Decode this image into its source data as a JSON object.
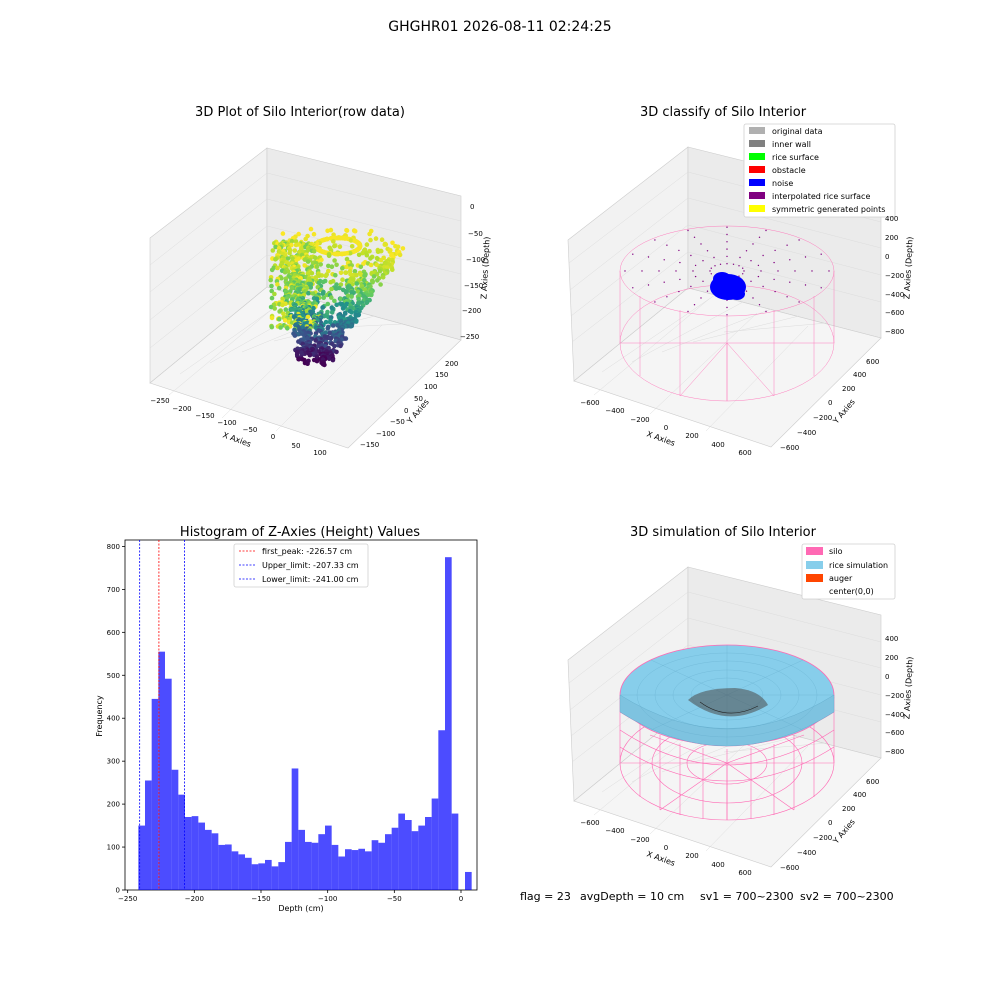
{
  "figure": {
    "title": "GHGHR01 2026-08-11 02:24:25",
    "bottom_text": {
      "flag": "flag = 23",
      "avg_depth": "avgDepth = 10 cm",
      "sv1": "sv1 = 700~2300",
      "sv2": "sv2 = 700~2300"
    }
  },
  "chart_data": [
    {
      "type": "scatter",
      "projection": "3d",
      "title": "3D Plot of Silo Interior(row data)",
      "xlabel": "X Axies",
      "ylabel": "Y Axies",
      "zlabel": "Z Axies (Depth)",
      "x_ticks": [
        "−250",
        "−200",
        "−150",
        "−100",
        "−50",
        "0",
        "50",
        "100"
      ],
      "y_ticks": [
        "−150",
        "−100",
        "−50",
        "0",
        "50",
        "100",
        "150",
        "200"
      ],
      "z_ticks": [
        "0",
        "−50",
        "−100",
        "−150",
        "−200",
        "−250"
      ],
      "xlim": [
        -260,
        130
      ],
      "ylim": [
        -160,
        220
      ],
      "zlim": [
        -260,
        0
      ],
      "colormap": "viridis",
      "grid": true
    },
    {
      "type": "scatter",
      "projection": "3d",
      "title": "3D classify of Silo Interior",
      "xlabel": "X Axies",
      "ylabel": "Y Axies",
      "zlabel": "Z Axies (Depth)",
      "x_ticks": [
        "−600",
        "−400",
        "−200",
        "0",
        "200",
        "400",
        "600"
      ],
      "y_ticks": [
        "−600",
        "−400",
        "−200",
        "0",
        "200",
        "400",
        "600"
      ],
      "z_ticks": [
        "400",
        "200",
        "0",
        "−200",
        "−400",
        "−600",
        "−800"
      ],
      "legend_placement": "top-right",
      "legend": [
        {
          "label": "original data",
          "color": "#b0b0b0"
        },
        {
          "label": "inner wall",
          "color": "#808080"
        },
        {
          "label": "rice surface",
          "color": "#00ff00"
        },
        {
          "label": "obstacle",
          "color": "#ff0000"
        },
        {
          "label": "noise",
          "color": "#0000ff"
        },
        {
          "label": "interpolated rice surface",
          "color": "#800080"
        },
        {
          "label": "symmetric generated points",
          "color": "#ffff00"
        }
      ],
      "grid": true
    },
    {
      "type": "bar",
      "title": "Histogram of Z-Axies (Height) Values",
      "xlabel": "Depth (cm)",
      "ylabel": "Frequency",
      "xlim": [
        -252,
        12
      ],
      "ylim": [
        0,
        815
      ],
      "x_ticks": [
        -250,
        -200,
        -150,
        -100,
        -50,
        0
      ],
      "y_ticks": [
        0,
        100,
        200,
        300,
        400,
        500,
        600,
        700,
        800
      ],
      "bin_width": 5,
      "bin_start": -242,
      "values": [
        150,
        255,
        445,
        555,
        492,
        280,
        222,
        170,
        172,
        157,
        140,
        132,
        105,
        106,
        90,
        83,
        75,
        60,
        62,
        70,
        55,
        65,
        112,
        283,
        140,
        112,
        110,
        130,
        150,
        105,
        78,
        95,
        93,
        96,
        90,
        116,
        110,
        130,
        145,
        178,
        163,
        137,
        150,
        170,
        213,
        372,
        775,
        178,
        0,
        42
      ],
      "bar_color": "#0000ff",
      "vlines": [
        {
          "label": "first_peak: -226.57 cm",
          "x": -226.57,
          "color": "#ff0000"
        },
        {
          "label": "Upper_limit: -207.33 cm",
          "x": -207.33,
          "color": "#0000ff"
        },
        {
          "label": "Lower_limit: -241.00 cm",
          "x": -241.0,
          "color": "#0000ff"
        }
      ],
      "legend_placement": "upper-center"
    },
    {
      "type": "surface",
      "projection": "3d",
      "title": "3D simulation of Silo Interior",
      "xlabel": "X Axies",
      "ylabel": "Y Axies",
      "zlabel": "Z Axies (Depth)",
      "x_ticks": [
        "−600",
        "−400",
        "−200",
        "0",
        "200",
        "400",
        "600"
      ],
      "y_ticks": [
        "−600",
        "−400",
        "−200",
        "0",
        "200",
        "400",
        "600"
      ],
      "z_ticks": [
        "400",
        "200",
        "0",
        "−200",
        "−400",
        "−600",
        "−800"
      ],
      "legend_placement": "top-right",
      "legend": [
        {
          "label": "silo",
          "color": "#ff69b4"
        },
        {
          "label": "rice simulation",
          "color": "#87ceeb"
        },
        {
          "label": "auger",
          "color": "#ff4500"
        },
        {
          "label": "center(0,0)",
          "color": ""
        }
      ],
      "grid": true
    }
  ]
}
